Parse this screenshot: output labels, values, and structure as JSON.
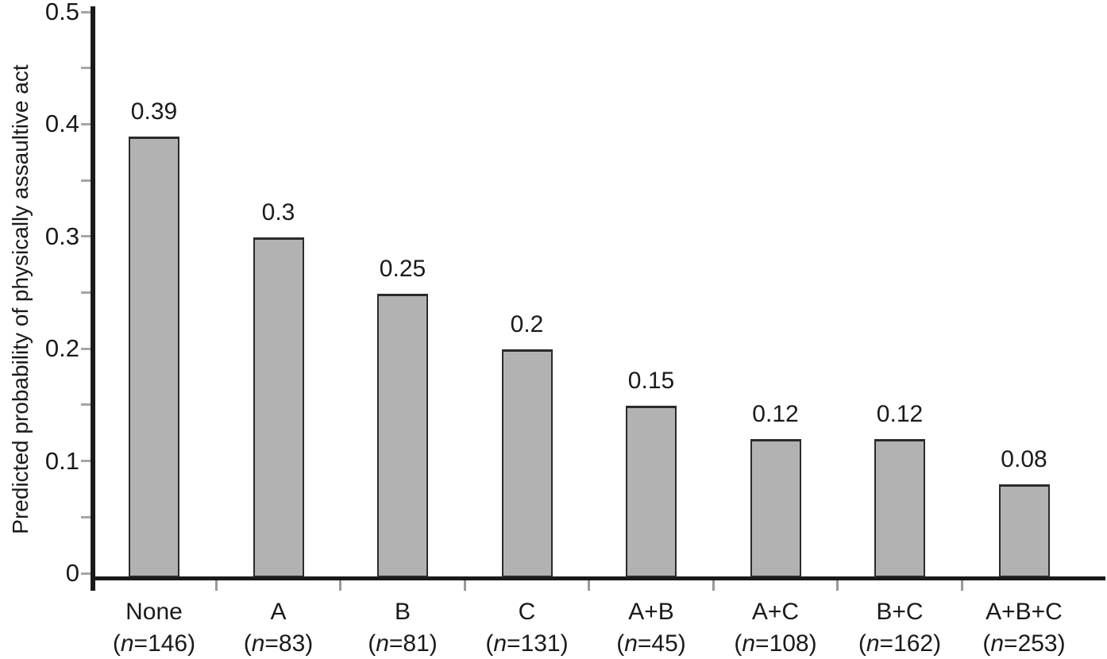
{
  "chart_data": {
    "type": "bar",
    "title": "",
    "xlabel": "",
    "ylabel": "Predicted probability of physically assaultive act",
    "categories": [
      "None",
      "A",
      "B",
      "C",
      "A+B",
      "A+C",
      "B+C",
      "A+B+C"
    ],
    "n_labels": [
      "(n=146)",
      "(n=83)",
      "(n=81)",
      "(n=131)",
      "(n=45)",
      "(n=108)",
      "(n=162)",
      "(n=253)"
    ],
    "sample_sizes": [
      146,
      83,
      81,
      131,
      45,
      108,
      162,
      253
    ],
    "values": [
      0.39,
      0.3,
      0.25,
      0.2,
      0.15,
      0.12,
      0.12,
      0.08
    ],
    "value_labels": [
      "0.39",
      "0.3",
      "0.25",
      "0.2",
      "0.15",
      "0.12",
      "0.12",
      "0.08"
    ],
    "ylim": [
      0,
      0.5
    ],
    "ytick_values": [
      0,
      0.1,
      0.2,
      0.3,
      0.4,
      0.5
    ],
    "ytick_labels": [
      "0",
      "0.1",
      "0.2",
      "0.3",
      "0.4",
      "0.5"
    ],
    "ytick_all_values": [
      0,
      0.05,
      0.1,
      0.15,
      0.2,
      0.25,
      0.3,
      0.35,
      0.4,
      0.45,
      0.5
    ],
    "grid": false,
    "legend": false,
    "colors": {
      "bar_fill": "#b2b2b2",
      "bar_border": "#2b2b2b",
      "axis": "#1a1a1a",
      "y_tick": "#a5a5a5",
      "x_tick": "#999999",
      "text": "#1a1a1a",
      "background": "#ffffff"
    }
  }
}
